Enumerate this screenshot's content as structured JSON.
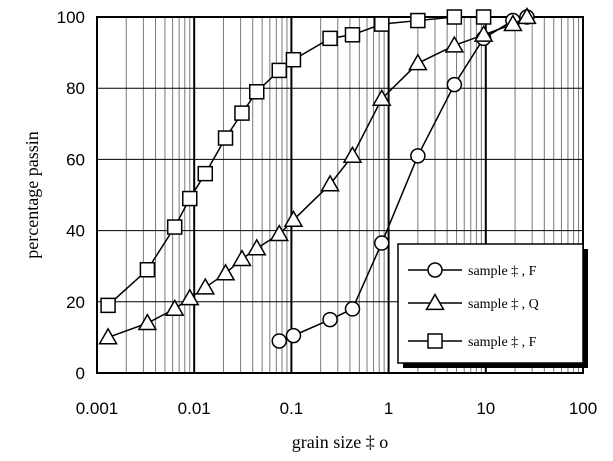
{
  "chart_data": {
    "type": "scatter",
    "xscale": "log",
    "xlim": [
      0.001,
      100
    ],
    "ylim": [
      0,
      100
    ],
    "xticks": [
      0.001,
      0.01,
      0.1,
      1,
      10,
      100
    ],
    "yticks": [
      0,
      20,
      40,
      60,
      80,
      100
    ],
    "xtick_labels": [
      "0.001",
      "0.01",
      "0.1",
      "1",
      "10",
      "100"
    ],
    "ytick_labels": [
      "0",
      "20",
      "40",
      "60",
      "80",
      "100"
    ],
    "xlabel": "grain size ‡ o",
    "ylabel": "percentage passin",
    "grid": true,
    "legend_position": "right",
    "series": [
      {
        "name": "sample ‡ , F",
        "marker": "circle",
        "color": "#000000",
        "x": [
          0.075,
          0.105,
          0.25,
          0.425,
          0.85,
          2.0,
          4.75,
          9.5,
          19.0,
          26.5
        ],
        "y": [
          9,
          10.5,
          15,
          18,
          36.5,
          61,
          81,
          94,
          99,
          100
        ]
      },
      {
        "name": "sample ‡ , Q",
        "marker": "triangle",
        "color": "#000000",
        "x": [
          0.0013,
          0.0033,
          0.0063,
          0.009,
          0.013,
          0.021,
          0.031,
          0.044,
          0.075,
          0.105,
          0.25,
          0.425,
          0.85,
          2.0,
          4.75,
          9.5,
          19.0,
          26.5
        ],
        "y": [
          10,
          14,
          18,
          21,
          24,
          28,
          32,
          35,
          39,
          43,
          53,
          61,
          77,
          87,
          92,
          95,
          98,
          100
        ]
      },
      {
        "name": "sample ‡ , F",
        "marker": "square",
        "color": "#000000",
        "x": [
          0.0013,
          0.0033,
          0.0063,
          0.009,
          0.013,
          0.021,
          0.031,
          0.044,
          0.075,
          0.105,
          0.25,
          0.425,
          0.85,
          2.0,
          4.75,
          9.5
        ],
        "y": [
          19,
          29,
          41,
          49,
          56,
          66,
          73,
          79,
          85,
          88,
          94,
          95,
          98,
          99,
          100,
          100
        ]
      }
    ]
  }
}
